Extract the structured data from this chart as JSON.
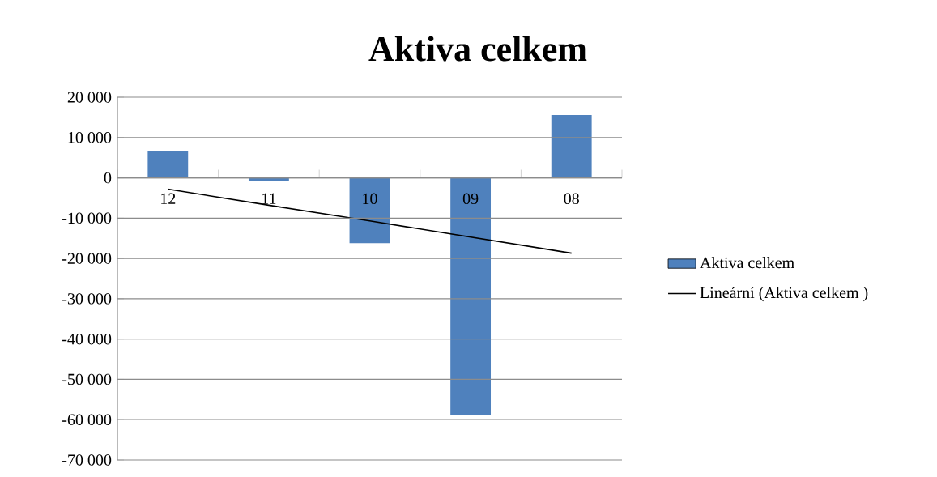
{
  "chart_data": {
    "type": "bar",
    "title": "Aktiva celkem",
    "categories": [
      "12",
      "11",
      "10",
      "09",
      "08"
    ],
    "ylim": [
      -70000,
      20000
    ],
    "yticks": [
      {
        "value": -70000,
        "label": "-70 000"
      },
      {
        "value": -60000,
        "label": "-60 000"
      },
      {
        "value": -50000,
        "label": "-50 000"
      },
      {
        "value": -40000,
        "label": "-40 000"
      },
      {
        "value": -30000,
        "label": "-30 000"
      },
      {
        "value": -20000,
        "label": "-20 000"
      },
      {
        "value": -10000,
        "label": "-10 000"
      },
      0,
      {
        "value": 10000,
        "label": "10 000"
      },
      {
        "value": 20000,
        "label": "20 000"
      }
    ],
    "grid": "y",
    "legend": "right",
    "series": [
      {
        "name": "Aktiva celkem",
        "color": "#4f81bd",
        "values": [
          6600,
          -900,
          -16200,
          -58800,
          15600
        ]
      },
      {
        "name": "Lineární (Aktiva celkem )",
        "type": "line",
        "color": "#000000",
        "line_style": "solid",
        "values": [
          -2800,
          -6800,
          -10700,
          -14700,
          -18700
        ]
      }
    ]
  }
}
